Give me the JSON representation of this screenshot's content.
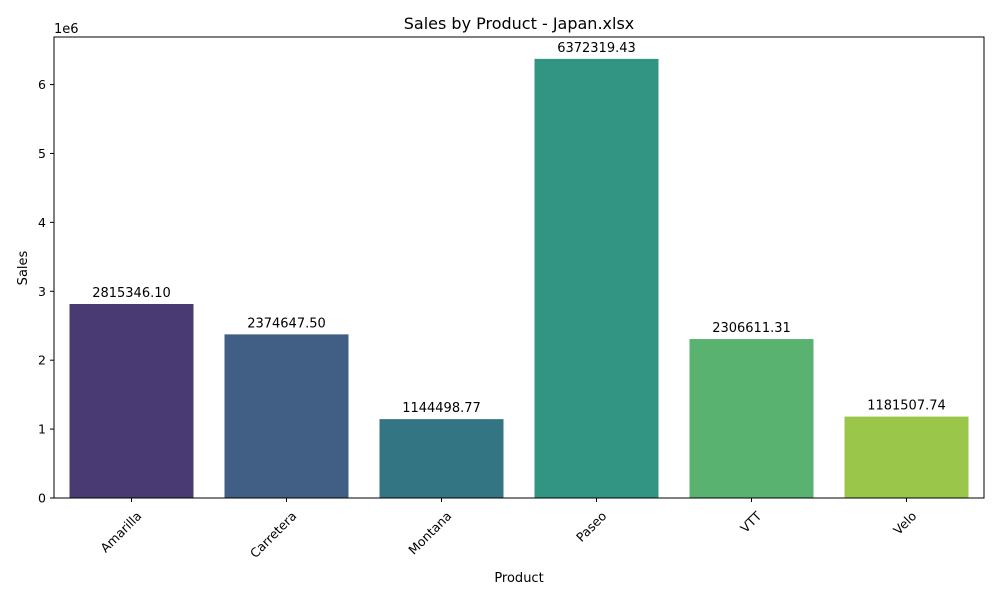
{
  "chart_data": {
    "type": "bar",
    "title": "Sales by Product - Japan.xlsx",
    "xlabel": "Product",
    "ylabel": "Sales",
    "y_offset_text": "1e6",
    "y_scale": 1000000,
    "ylim": [
      0,
      6.69
    ],
    "yticks": [
      0,
      1,
      2,
      3,
      4,
      5,
      6
    ],
    "ytick_labels": [
      "0",
      "1",
      "2",
      "3",
      "4",
      "5",
      "6"
    ],
    "categories": [
      "Amarilla",
      "Carretera",
      "Montana",
      "Paseo",
      "VTT",
      "Velo"
    ],
    "values": [
      2815346.1,
      2374647.5,
      1144498.77,
      6372319.43,
      2306611.31,
      1181507.74
    ],
    "value_labels": [
      "2815346.10",
      "2374647.50",
      "1144498.77",
      "6372319.43",
      "2306611.31",
      "1181507.74"
    ],
    "colors": [
      "#4a3a73",
      "#415f84",
      "#337583",
      "#329482",
      "#5ab271",
      "#9ac74a"
    ],
    "grid": false,
    "legend": "none",
    "xtick_rotation": 45
  }
}
